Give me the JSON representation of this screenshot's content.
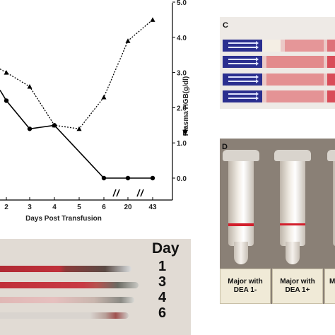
{
  "chart_data": {
    "type": "line",
    "x_categories": [
      "2",
      "3",
      "4",
      "5",
      "6",
      "20",
      "43"
    ],
    "xlabel": "Days Post Transfusion",
    "ylabel_right": "Plasma HGB(g/dl)",
    "ylim_right": [
      0,
      5
    ],
    "yticks_right": [
      "0.0",
      "1.0",
      "2.0",
      "3.0",
      "4.0",
      "5.0"
    ],
    "axis_breaks_after": [
      "6",
      "20"
    ],
    "series": [
      {
        "line_style": "solid",
        "marker": "circle",
        "points": [
          {
            "x": "2",
            "y": 2.2
          },
          {
            "x": "3",
            "y": 1.4
          },
          {
            "x": "4",
            "y": 1.5
          },
          {
            "x": "6",
            "y": 0.0
          },
          {
            "x": "20",
            "y": 0.0
          },
          {
            "x": "43",
            "y": 0.0
          }
        ],
        "leading_segment_from_y": 2.5
      },
      {
        "line_style": "dotted",
        "marker": "triangle",
        "points": [
          {
            "x": "2",
            "y": 3.0
          },
          {
            "x": "3",
            "y": 2.6
          },
          {
            "x": "4",
            "y": 1.5
          },
          {
            "x": "5",
            "y": 1.4
          },
          {
            "x": "6",
            "y": 2.3
          },
          {
            "x": "20",
            "y": 3.9
          },
          {
            "x": "43",
            "y": 4.5
          }
        ],
        "leading_segment_from_y": 3.1
      }
    ]
  },
  "panel_c": {
    "letter": "C",
    "strip_count": 4
  },
  "panel_d": {
    "letter": "D",
    "labels": [
      "Major with DEA 1-",
      "Major with DEA 1+",
      "Minc DI"
    ]
  },
  "panel_strips": {
    "title": "Day",
    "days": [
      "1",
      "3",
      "4",
      "6"
    ]
  },
  "colors": {
    "line": "#000000",
    "strip_blue": "#2b2f8f",
    "band_red": "#d21f2c",
    "strip_red": "#c0303a"
  }
}
